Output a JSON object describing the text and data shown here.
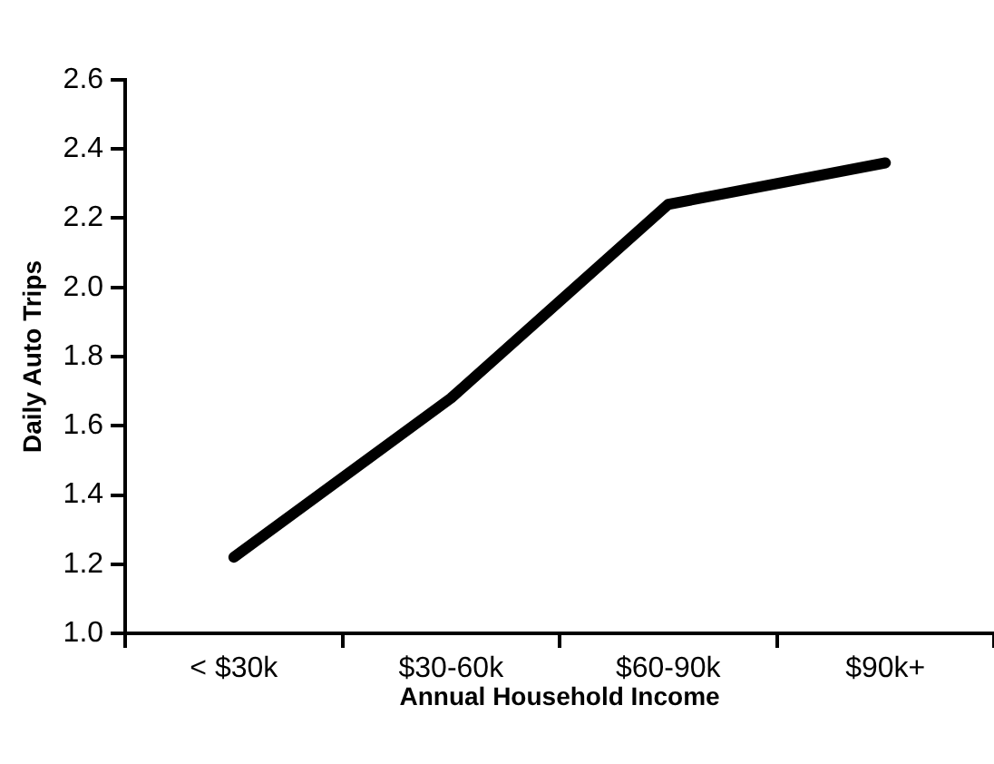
{
  "chart_data": {
    "type": "line",
    "xlabel": "Annual Household Income",
    "ylabel": "Daily Auto Trips",
    "categories": [
      "< $30k",
      "$30-60k",
      "$60-90k",
      "$90k+"
    ],
    "series": [
      {
        "color": "#000000",
        "values": [
          1.22,
          1.68,
          2.24,
          2.36
        ]
      }
    ],
    "ylim": [
      1.0,
      2.6
    ],
    "yticks": [
      {
        "value": 1.0,
        "label": "1.0"
      },
      {
        "value": 1.2,
        "label": "1.2"
      },
      {
        "value": 1.4,
        "label": "1.4"
      },
      {
        "value": 1.6,
        "label": "1.6"
      },
      {
        "value": 1.8,
        "label": "1.8"
      },
      {
        "value": 2.0,
        "label": "2.0"
      },
      {
        "value": 2.2,
        "label": "2.2"
      },
      {
        "value": 2.4,
        "label": "2.4"
      },
      {
        "value": 2.6,
        "label": "2.6"
      }
    ],
    "grid": false,
    "legend": false,
    "marker": "none",
    "line_style": "solid"
  }
}
